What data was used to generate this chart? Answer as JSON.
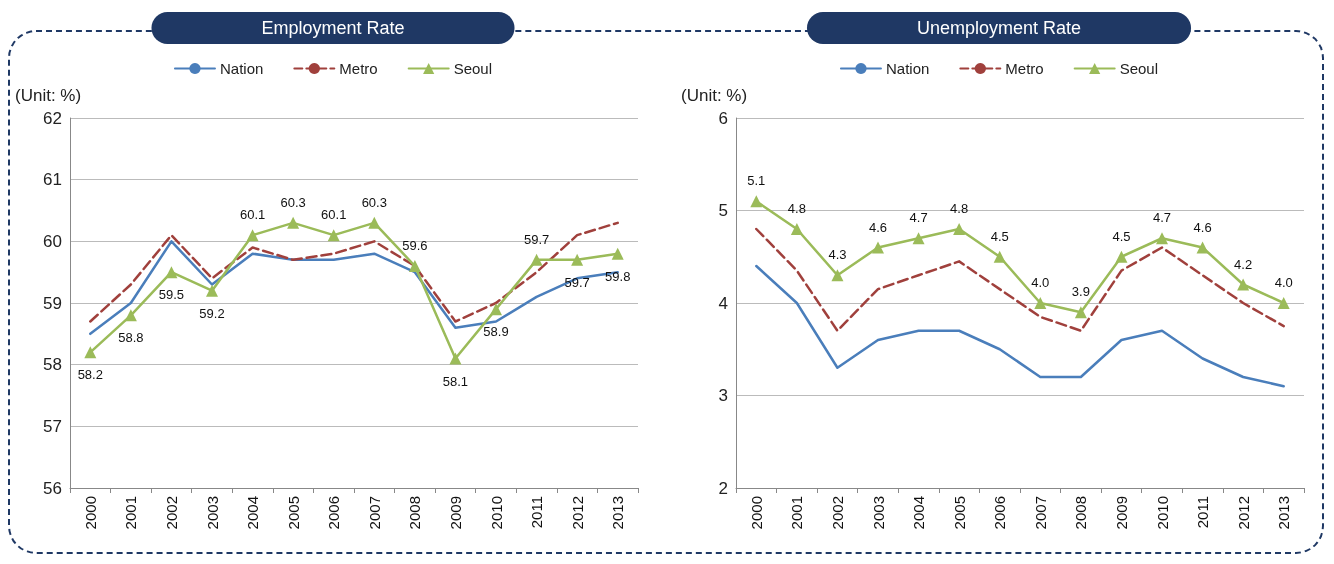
{
  "chart_data": [
    {
      "type": "line",
      "title": "Employment Rate",
      "ylabel": "(Unit: %)",
      "categories": [
        "2000",
        "2001",
        "2002",
        "2003",
        "2004",
        "2005",
        "2006",
        "2007",
        "2008",
        "2009",
        "2010",
        "2011",
        "2012",
        "2013"
      ],
      "series": [
        {
          "name": "Nation",
          "color": "#4a7ebb",
          "marker": "none",
          "line_style": "solid",
          "values": [
            58.5,
            59.0,
            60.0,
            59.3,
            59.8,
            59.7,
            59.7,
            59.8,
            59.5,
            58.6,
            58.7,
            59.1,
            59.4,
            59.5
          ]
        },
        {
          "name": "Metro",
          "color": "#a0403c",
          "marker": "none",
          "line_style": "dashed",
          "values": [
            58.7,
            59.3,
            60.1,
            59.4,
            59.9,
            59.7,
            59.8,
            60.0,
            59.6,
            58.7,
            59.0,
            59.5,
            60.1,
            60.3
          ]
        },
        {
          "name": "Seoul",
          "color": "#9bbb59",
          "marker": "triangle",
          "line_style": "solid",
          "values": [
            58.2,
            58.8,
            59.5,
            59.2,
            60.1,
            60.3,
            60.1,
            60.3,
            59.6,
            58.1,
            58.9,
            59.7,
            59.7,
            59.8
          ],
          "value_labels": [
            "58.2",
            "58.8",
            "59.5",
            "59.2",
            "60.1",
            "60.3",
            "60.1",
            "60.3",
            "59.6",
            "58.1",
            "58.9",
            "59.7",
            "59.7",
            "59.8"
          ]
        }
      ],
      "ylim": [
        56,
        62
      ],
      "yticks": [
        56,
        57,
        58,
        59,
        60,
        61,
        62
      ],
      "grid": "y",
      "legend": "top"
    },
    {
      "type": "line",
      "title": "Unemployment Rate",
      "ylabel": "(Unit: %)",
      "categories": [
        "2000",
        "2001",
        "2002",
        "2003",
        "2004",
        "2005",
        "2006",
        "2007",
        "2008",
        "2009",
        "2010",
        "2011",
        "2012",
        "2013"
      ],
      "series": [
        {
          "name": "Nation",
          "color": "#4a7ebb",
          "marker": "none",
          "line_style": "solid",
          "values": [
            4.4,
            4.0,
            3.3,
            3.6,
            3.7,
            3.7,
            3.5,
            3.2,
            3.2,
            3.6,
            3.7,
            3.4,
            3.2,
            3.1
          ]
        },
        {
          "name": "Metro",
          "color": "#a0403c",
          "marker": "none",
          "line_style": "dashed",
          "values": [
            4.8,
            4.35,
            3.7,
            4.15,
            4.3,
            4.45,
            4.15,
            3.85,
            3.7,
            4.35,
            4.6,
            4.3,
            4.0,
            3.75
          ]
        },
        {
          "name": "Seoul",
          "color": "#9bbb59",
          "marker": "triangle",
          "line_style": "solid",
          "values": [
            5.1,
            4.8,
            4.3,
            4.6,
            4.7,
            4.8,
            4.5,
            4.0,
            3.9,
            4.5,
            4.7,
            4.6,
            4.2,
            4.0
          ],
          "value_labels": [
            "5.1",
            "4.8",
            "4.3",
            "4.6",
            "4.7",
            "4.8",
            "4.5",
            "4.0",
            "3.9",
            "4.5",
            "4.7",
            "4.6",
            "4.2",
            "4.0"
          ]
        }
      ],
      "ylim": [
        2,
        6
      ],
      "yticks": [
        2,
        3,
        4,
        5,
        6
      ],
      "grid": "y",
      "legend": "top"
    }
  ]
}
